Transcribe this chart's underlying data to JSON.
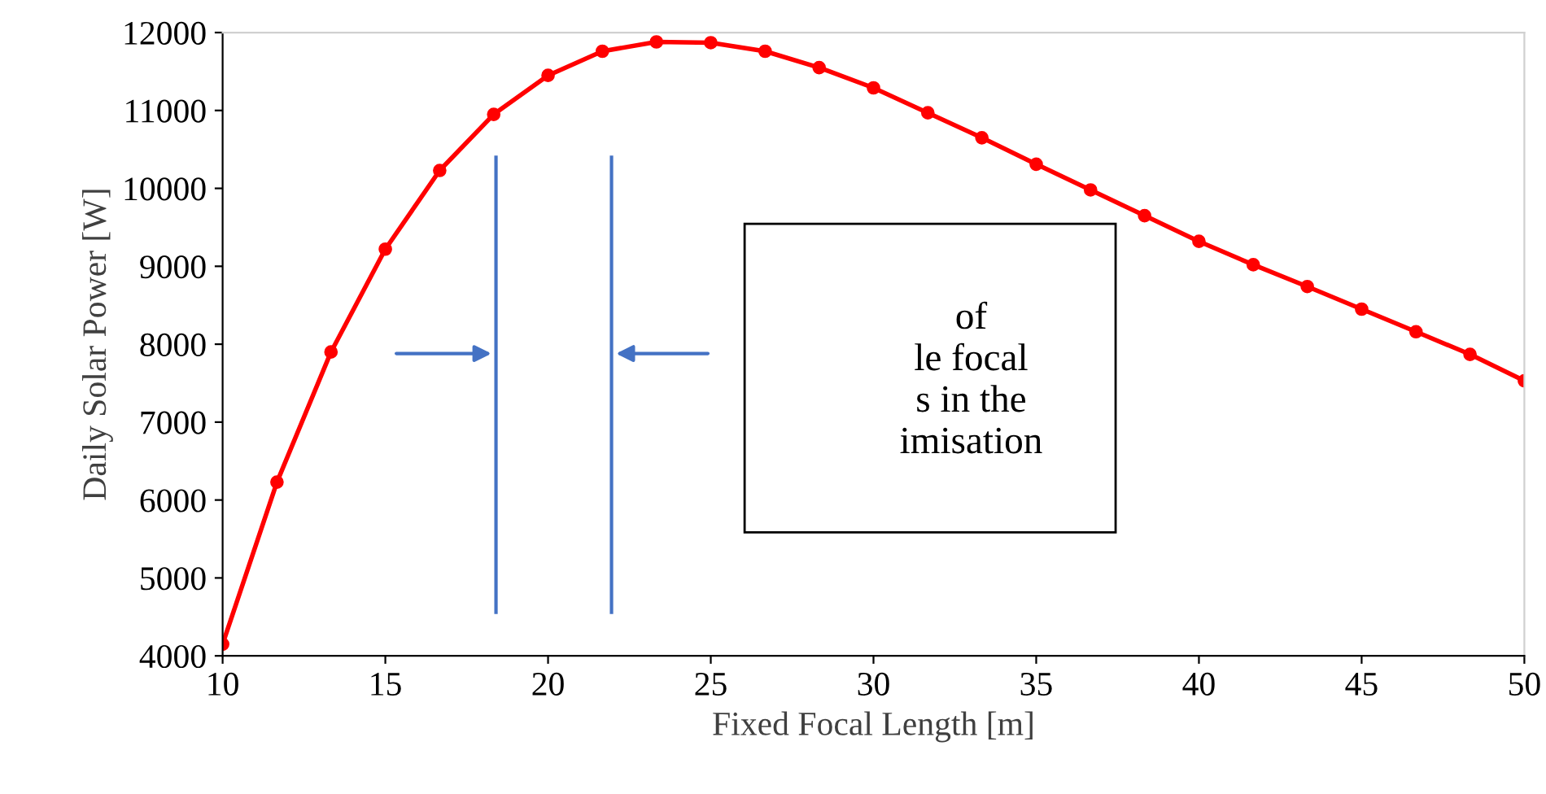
{
  "chart_data": {
    "type": "line",
    "xlabel": "Fixed Focal Length [m]",
    "ylabel": "Daily Solar Power [W]",
    "x": [
      10,
      11.67,
      13.33,
      15,
      16.67,
      18.33,
      20,
      21.67,
      23.33,
      25,
      26.67,
      28.33,
      30,
      31.67,
      33.33,
      35,
      36.67,
      38.33,
      40,
      41.67,
      43.33,
      45,
      46.67,
      48.33,
      50
    ],
    "series": [
      {
        "color": "#ff0000",
        "values": [
          4150,
          6230,
          7900,
          9220,
          10230,
          10950,
          11450,
          11760,
          11880,
          11870,
          11760,
          11550,
          11290,
          10970,
          10650,
          10310,
          9980,
          9650,
          9320,
          9020,
          8740,
          8450,
          8160,
          7870,
          7530
        ]
      }
    ],
    "xlim": [
      10,
      50
    ],
    "xticks": [
      10,
      15,
      20,
      25,
      30,
      35,
      40,
      45,
      50
    ],
    "ylim": [
      4000,
      12000
    ],
    "yticks": [
      4000,
      5000,
      6000,
      7000,
      8000,
      9000,
      10000,
      11000,
      12000
    ],
    "ref_lines": [
      {
        "axis": "x",
        "value": 18.4,
        "color": "#4472c4"
      },
      {
        "axis": "x",
        "value": 21.95,
        "color": "#4472c4"
      }
    ],
    "annotations": [
      "of\nle focal\ns in the\nimisation"
    ],
    "marker": "circle",
    "line_style": "solid",
    "grid": false
  }
}
